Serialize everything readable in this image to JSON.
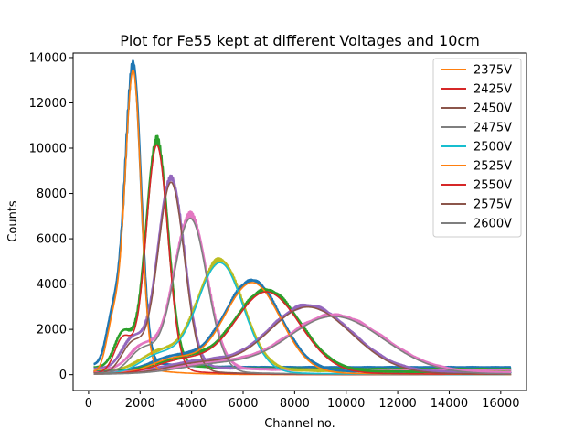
{
  "chart_data": {
    "type": "line",
    "title": "Plot for Fe55 kept at different Voltages and 10cm",
    "xlabel": "Channel no.",
    "ylabel": "Counts",
    "xlim": [
      -600,
      17000
    ],
    "ylim": [
      -700,
      14200
    ],
    "xticks": [
      0,
      2000,
      4000,
      6000,
      8000,
      10000,
      12000,
      14000,
      16000
    ],
    "yticks": [
      0,
      2000,
      4000,
      6000,
      8000,
      10000,
      12000,
      14000
    ],
    "grid": false,
    "legend_position": "top-right",
    "series": [
      {
        "name": "2375V",
        "color": "#ff7f0e",
        "peak_x": 1730,
        "peak_y": 13050,
        "sigma_left": 320,
        "sigma_right": 300,
        "shoulder_x": 950,
        "shoulder_y": 2050
      },
      {
        "name": "2425V",
        "color": "#d62728",
        "peak_x": 2650,
        "peak_y": 9850,
        "sigma_left": 420,
        "sigma_right": 430,
        "shoulder_x": 1350,
        "shoulder_y": 1500
      },
      {
        "name": "2450V",
        "color": "#8c564b",
        "peak_x": 3200,
        "peak_y": 8250,
        "sigma_left": 520,
        "sigma_right": 520,
        "shoulder_x": 1700,
        "shoulder_y": 1250
      },
      {
        "name": "2475V",
        "color": "#7f7f7f",
        "peak_x": 3950,
        "peak_y": 6700,
        "sigma_left": 650,
        "sigma_right": 650,
        "shoulder_x": 2100,
        "shoulder_y": 1000
      },
      {
        "name": "2500V",
        "color": "#17becf",
        "peak_x": 5100,
        "peak_y": 4800,
        "sigma_left": 900,
        "sigma_right": 900,
        "shoulder_x": 2700,
        "shoulder_y": 750
      },
      {
        "name": "2525V",
        "color": "#ff7f0e",
        "peak_x": 6350,
        "peak_y": 3950,
        "sigma_left": 1100,
        "sigma_right": 1100,
        "shoulder_x": 3300,
        "shoulder_y": 620
      },
      {
        "name": "2550V",
        "color": "#d62728",
        "peak_x": 6900,
        "peak_y": 3550,
        "sigma_left": 1250,
        "sigma_right": 1300,
        "shoulder_x": 3600,
        "shoulder_y": 550
      },
      {
        "name": "2575V",
        "color": "#8c564b",
        "peak_x": 8500,
        "peak_y": 2900,
        "sigma_left": 1550,
        "sigma_right": 1700,
        "shoulder_x": 4300,
        "shoulder_y": 450
      },
      {
        "name": "2600V",
        "color": "#7f7f7f",
        "peak_x": 9500,
        "peak_y": 2500,
        "sigma_left": 1800,
        "sigma_right": 1950,
        "shoulder_x": 4900,
        "shoulder_y": 380
      }
    ],
    "underlay_colors": [
      "#1f77b4",
      "#2ca02c",
      "#9467bd",
      "#e377c2",
      "#bcbd22",
      "#1f77b4",
      "#2ca02c",
      "#9467bd",
      "#e377c2"
    ]
  }
}
